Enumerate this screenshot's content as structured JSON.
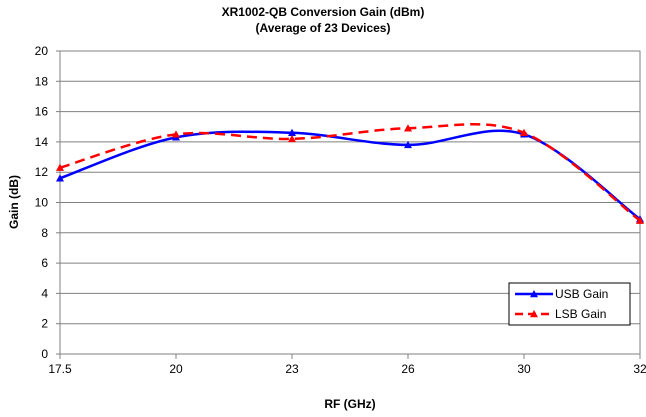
{
  "chart_data": {
    "type": "line",
    "title": "XR1002-QB Conversion Gain (dBm)",
    "subtitle": "(Average of 23 Devices)",
    "xlabel": "RF (GHz)",
    "ylabel": "Gain (dB)",
    "categories": [
      "17.5",
      "20",
      "23",
      "26",
      "30",
      "32"
    ],
    "ylim": [
      0,
      20
    ],
    "yticks": [
      0,
      2,
      4,
      6,
      8,
      10,
      12,
      14,
      16,
      18,
      20
    ],
    "grid": true,
    "legend_position": "bottom-right",
    "series": [
      {
        "name": "USB Gain",
        "color": "#0000ff",
        "dash": "solid",
        "marker": "triangle",
        "values": [
          11.6,
          14.3,
          14.6,
          13.8,
          14.5,
          8.9
        ]
      },
      {
        "name": "LSB Gain",
        "color": "#ff0000",
        "dash": "dashed",
        "marker": "triangle",
        "values": [
          12.3,
          14.5,
          14.2,
          14.9,
          14.6,
          8.8
        ]
      }
    ]
  }
}
